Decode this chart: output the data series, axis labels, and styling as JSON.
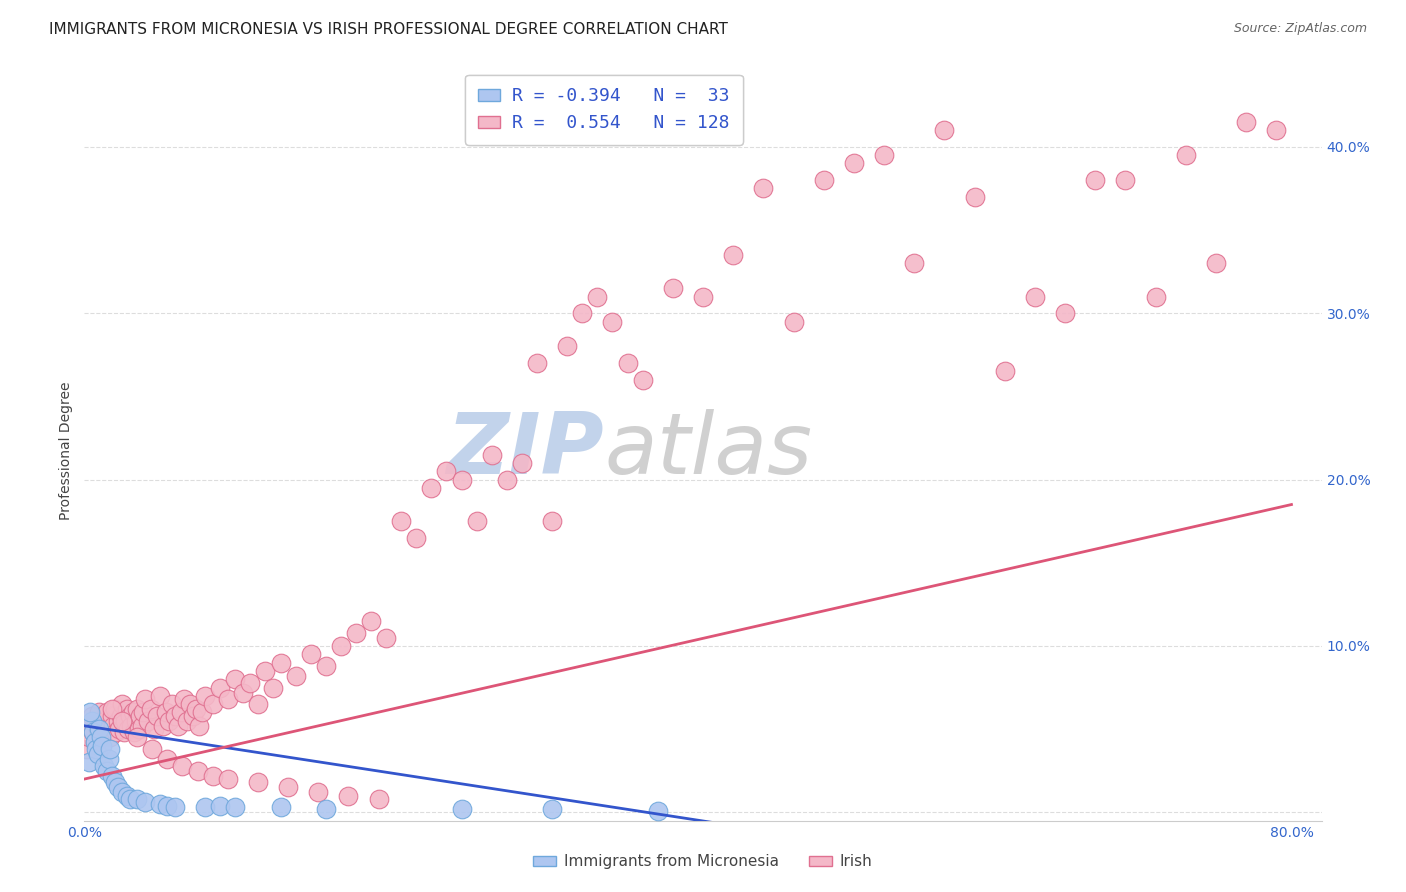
{
  "title": "IMMIGRANTS FROM MICRONESIA VS IRISH PROFESSIONAL DEGREE CORRELATION CHART",
  "source": "Source: ZipAtlas.com",
  "ylabel": "Professional Degree",
  "xlim": [
    0.0,
    0.82
  ],
  "ylim": [
    -0.005,
    0.44
  ],
  "x_ticks": [
    0.0,
    0.2,
    0.4,
    0.6,
    0.8
  ],
  "x_tick_labels": [
    "0.0%",
    "",
    "",
    "",
    "80.0%"
  ],
  "y_ticks": [
    0.0,
    0.1,
    0.2,
    0.3,
    0.4
  ],
  "y_tick_labels": [
    "",
    "10.0%",
    "20.0%",
    "30.0%",
    "40.0%"
  ],
  "blue_R": -0.394,
  "blue_N": 33,
  "pink_R": 0.554,
  "pink_N": 128,
  "blue_color": "#aec6f0",
  "blue_edge": "#6fa8dc",
  "pink_color": "#f4b8c8",
  "pink_edge": "#e07090",
  "blue_line_color": "#3355cc",
  "pink_line_color": "#dd5577",
  "watermark": "ZIPatlas",
  "legend_blue_label": "Immigrants from Micronesia",
  "legend_pink_label": "Irish",
  "blue_scatter_x": [
    0.003,
    0.005,
    0.006,
    0.007,
    0.008,
    0.009,
    0.01,
    0.011,
    0.012,
    0.013,
    0.015,
    0.016,
    0.017,
    0.018,
    0.02,
    0.022,
    0.025,
    0.028,
    0.03,
    0.035,
    0.04,
    0.05,
    0.055,
    0.06,
    0.08,
    0.09,
    0.1,
    0.13,
    0.16,
    0.25,
    0.31,
    0.38,
    0.004
  ],
  "blue_scatter_y": [
    0.03,
    0.055,
    0.048,
    0.042,
    0.038,
    0.035,
    0.05,
    0.045,
    0.04,
    0.028,
    0.025,
    0.032,
    0.038,
    0.022,
    0.018,
    0.015,
    0.012,
    0.01,
    0.008,
    0.008,
    0.006,
    0.005,
    0.004,
    0.003,
    0.003,
    0.004,
    0.003,
    0.003,
    0.002,
    0.002,
    0.002,
    0.001,
    0.06
  ],
  "pink_scatter_x": [
    0.002,
    0.003,
    0.004,
    0.005,
    0.006,
    0.007,
    0.008,
    0.009,
    0.01,
    0.011,
    0.012,
    0.013,
    0.014,
    0.015,
    0.016,
    0.017,
    0.018,
    0.019,
    0.02,
    0.021,
    0.022,
    0.023,
    0.024,
    0.025,
    0.026,
    0.027,
    0.028,
    0.029,
    0.03,
    0.031,
    0.032,
    0.033,
    0.034,
    0.035,
    0.036,
    0.037,
    0.038,
    0.039,
    0.04,
    0.042,
    0.044,
    0.046,
    0.048,
    0.05,
    0.052,
    0.054,
    0.056,
    0.058,
    0.06,
    0.062,
    0.064,
    0.066,
    0.068,
    0.07,
    0.072,
    0.074,
    0.076,
    0.078,
    0.08,
    0.085,
    0.09,
    0.095,
    0.1,
    0.105,
    0.11,
    0.115,
    0.12,
    0.125,
    0.13,
    0.14,
    0.15,
    0.16,
    0.17,
    0.18,
    0.19,
    0.2,
    0.21,
    0.22,
    0.23,
    0.24,
    0.25,
    0.26,
    0.27,
    0.28,
    0.29,
    0.3,
    0.31,
    0.32,
    0.33,
    0.34,
    0.35,
    0.36,
    0.37,
    0.39,
    0.41,
    0.43,
    0.45,
    0.47,
    0.49,
    0.51,
    0.53,
    0.55,
    0.57,
    0.59,
    0.61,
    0.63,
    0.65,
    0.67,
    0.69,
    0.71,
    0.73,
    0.75,
    0.77,
    0.79,
    0.018,
    0.025,
    0.035,
    0.045,
    0.055,
    0.065,
    0.075,
    0.085,
    0.095,
    0.115,
    0.135,
    0.155,
    0.175,
    0.195
  ],
  "pink_scatter_y": [
    0.038,
    0.045,
    0.052,
    0.058,
    0.048,
    0.042,
    0.055,
    0.05,
    0.06,
    0.045,
    0.052,
    0.048,
    0.055,
    0.06,
    0.05,
    0.045,
    0.058,
    0.052,
    0.062,
    0.048,
    0.055,
    0.05,
    0.058,
    0.065,
    0.048,
    0.055,
    0.062,
    0.05,
    0.058,
    0.052,
    0.06,
    0.048,
    0.055,
    0.062,
    0.05,
    0.058,
    0.052,
    0.06,
    0.068,
    0.055,
    0.062,
    0.05,
    0.058,
    0.07,
    0.052,
    0.06,
    0.055,
    0.065,
    0.058,
    0.052,
    0.06,
    0.068,
    0.055,
    0.065,
    0.058,
    0.062,
    0.052,
    0.06,
    0.07,
    0.065,
    0.075,
    0.068,
    0.08,
    0.072,
    0.078,
    0.065,
    0.085,
    0.075,
    0.09,
    0.082,
    0.095,
    0.088,
    0.1,
    0.108,
    0.115,
    0.105,
    0.175,
    0.165,
    0.195,
    0.205,
    0.2,
    0.175,
    0.215,
    0.2,
    0.21,
    0.27,
    0.175,
    0.28,
    0.3,
    0.31,
    0.295,
    0.27,
    0.26,
    0.315,
    0.31,
    0.335,
    0.375,
    0.295,
    0.38,
    0.39,
    0.395,
    0.33,
    0.41,
    0.37,
    0.265,
    0.31,
    0.3,
    0.38,
    0.38,
    0.31,
    0.395,
    0.33,
    0.415,
    0.41,
    0.062,
    0.055,
    0.045,
    0.038,
    0.032,
    0.028,
    0.025,
    0.022,
    0.02,
    0.018,
    0.015,
    0.012,
    0.01,
    0.008
  ],
  "blue_line_x": [
    0.0,
    0.43
  ],
  "blue_line_y": [
    0.052,
    -0.008
  ],
  "pink_line_x": [
    0.0,
    0.8
  ],
  "pink_line_y": [
    0.02,
    0.185
  ],
  "background_color": "#ffffff",
  "grid_color": "#dddddd",
  "title_fontsize": 11,
  "axis_label_fontsize": 10,
  "tick_fontsize": 10,
  "watermark_color": "#c8d8f0",
  "source_fontsize": 9
}
